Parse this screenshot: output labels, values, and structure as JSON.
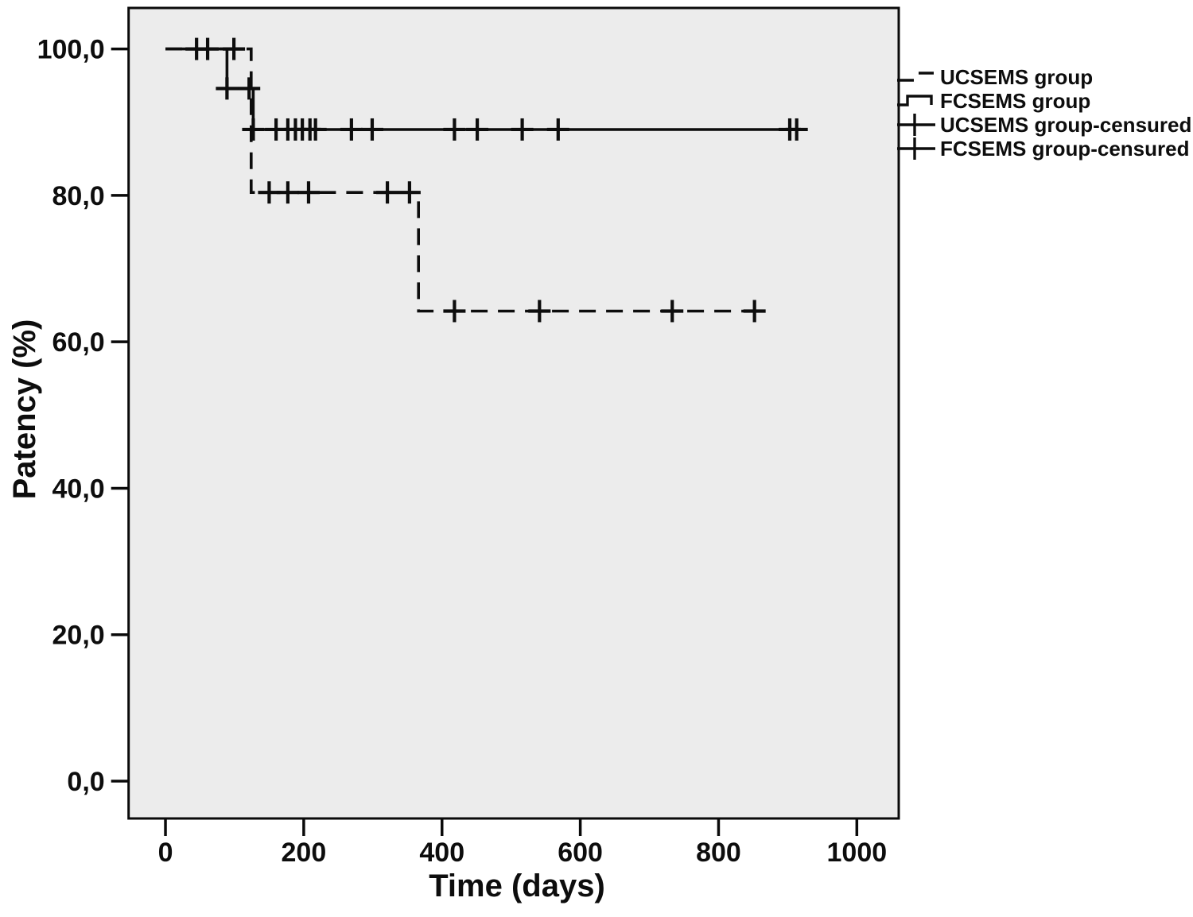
{
  "figure": {
    "background": "#ffffff",
    "plot_background": "#ececec",
    "frame_color": "#0a0a0a",
    "line_color": "#0d0d0d"
  },
  "chart_data": {
    "type": "line",
    "subtype": "kaplan-meier-step",
    "title": "",
    "xlabel": "Time (days)",
    "ylabel": "Patency (%)",
    "grid": false,
    "xlim": [
      -53.3,
      1060.6
    ],
    "ylim": [
      -5.1,
      105.6
    ],
    "x_ticks": [
      0,
      200,
      400,
      600,
      800,
      1000
    ],
    "x_tick_labels": [
      "0",
      "200",
      "400",
      "600",
      "800",
      "1000"
    ],
    "y_ticks": [
      0,
      20,
      40,
      60,
      80,
      100
    ],
    "y_tick_labels": [
      "0,0",
      "20,0",
      "40,0",
      "60,0",
      "80,0",
      "100,0"
    ],
    "legend_position": "outside-right-top",
    "series": [
      {
        "name": "FCSEMS group",
        "line_style": "solid",
        "color": "#0d0d0d",
        "points": [
          [
            0,
            100
          ],
          [
            89,
            100
          ],
          [
            89,
            94.6
          ],
          [
            127,
            94.6
          ],
          [
            127,
            89.0
          ],
          [
            920,
            89.0
          ]
        ],
        "censored": [
          [
            45,
            100
          ],
          [
            61,
            100
          ],
          [
            89,
            94.6
          ],
          [
            121,
            94.6
          ],
          [
            127,
            89.0
          ],
          [
            160,
            89.0
          ],
          [
            177,
            89.0
          ],
          [
            188,
            89.0
          ],
          [
            198,
            89.0
          ],
          [
            209,
            89.0
          ],
          [
            217,
            89.0
          ],
          [
            269,
            89.0
          ],
          [
            299,
            89.0
          ],
          [
            418,
            89.0
          ],
          [
            451,
            89.0
          ],
          [
            516,
            89.0
          ],
          [
            568,
            89.0
          ],
          [
            903,
            89.0
          ],
          [
            913,
            89.0
          ]
        ]
      },
      {
        "name": "UCSEMS group",
        "line_style": "dashed",
        "color": "#0d0d0d",
        "points": [
          [
            0,
            100
          ],
          [
            124,
            100
          ],
          [
            124,
            80.4
          ],
          [
            366,
            80.4
          ],
          [
            366,
            64.2
          ],
          [
            869,
            64.2
          ]
        ],
        "censored": [
          [
            99,
            100
          ],
          [
            150,
            80.4
          ],
          [
            177,
            80.4
          ],
          [
            207,
            80.4
          ],
          [
            321,
            80.4
          ],
          [
            353,
            80.4
          ],
          [
            418,
            64.2
          ],
          [
            541,
            64.2
          ],
          [
            733,
            64.2
          ],
          [
            852,
            64.2
          ]
        ]
      }
    ],
    "legend": [
      {
        "label": "UCSEMS group",
        "sample": "dashed-line"
      },
      {
        "label": "FCSEMS group",
        "sample": "solid-step"
      },
      {
        "label": "UCSEMS group-censured",
        "sample": "line-plus"
      },
      {
        "label": "FCSEMS group-censured",
        "sample": "line-plus"
      }
    ]
  }
}
